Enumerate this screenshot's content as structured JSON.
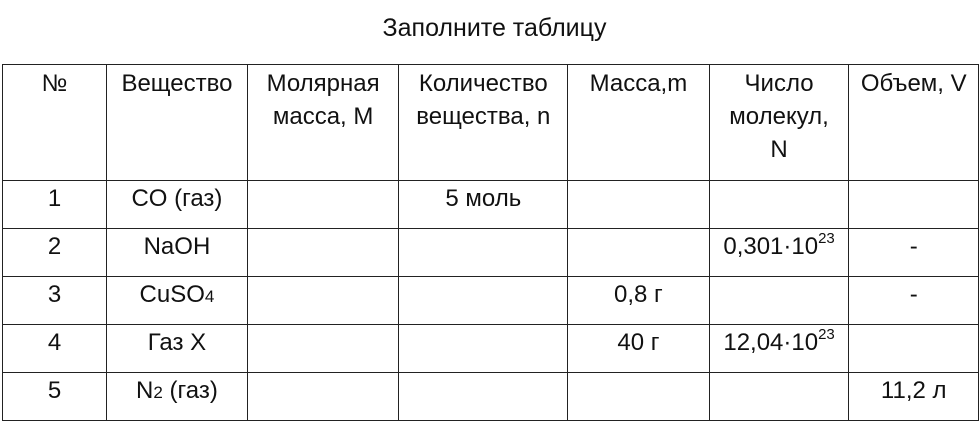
{
  "title": "Заполните таблицу",
  "headers": [
    "№",
    "Вещество",
    "Молярная масса, M",
    "Количество вещества, n",
    "Масса,m",
    "Число молекул, N",
    "Объем, V"
  ],
  "rows": [
    {
      "no": "1",
      "substance": {
        "main": "CO (газ)",
        "sub": "",
        "rest": ""
      },
      "M": "",
      "n": "5 моль",
      "m": "",
      "N": {
        "mantissa": "",
        "exp": ""
      },
      "V": ""
    },
    {
      "no": "2",
      "substance": {
        "main": "NaOH",
        "sub": "",
        "rest": ""
      },
      "M": "",
      "n": "",
      "m": "",
      "N": {
        "mantissa": "0,301·10",
        "exp": "23"
      },
      "V": "-"
    },
    {
      "no": "3",
      "substance": {
        "main": "CuSO",
        "sub": "4",
        "rest": ""
      },
      "M": "",
      "n": "",
      "m": "0,8 г",
      "N": {
        "mantissa": "",
        "exp": ""
      },
      "V": "-"
    },
    {
      "no": "4",
      "substance": {
        "main": "Газ X",
        "sub": "",
        "rest": ""
      },
      "M": "",
      "n": "",
      "m": "40 г",
      "N": {
        "mantissa": "12,04·10",
        "exp": "23"
      },
      "V": ""
    },
    {
      "no": "5",
      "substance": {
        "main": "N",
        "sub": "2",
        "rest": " (газ)"
      },
      "M": "",
      "n": "",
      "m": "",
      "N": {
        "mantissa": "",
        "exp": ""
      },
      "V": "11,2 л"
    }
  ]
}
